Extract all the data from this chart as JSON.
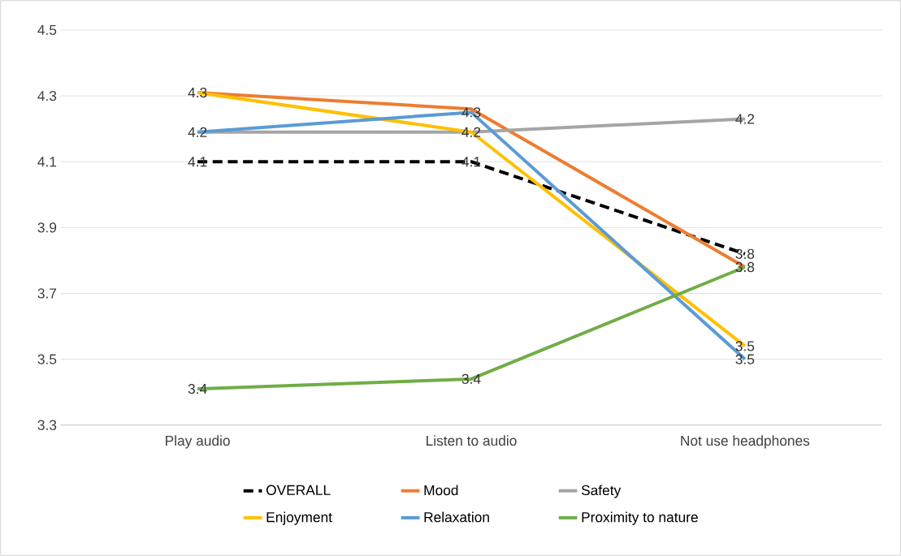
{
  "chart_data": {
    "type": "line",
    "categories": [
      "Play audio",
      "Listen to audio",
      "Not use headphones"
    ],
    "ylim": [
      3.3,
      4.5
    ],
    "yticks": [
      3.3,
      3.5,
      3.7,
      3.9,
      4.1,
      4.3,
      4.5
    ],
    "grid": "y",
    "legend": "bottom",
    "marker": "none",
    "series": [
      {
        "name": "OVERALL",
        "color": "#000000",
        "line_style": "dashed",
        "values": [
          4.1,
          4.1,
          3.82
        ],
        "value_labels": [
          "4.1",
          "4.1",
          "3.8"
        ]
      },
      {
        "name": "Mood",
        "color": "#ed7d31",
        "values": [
          4.31,
          4.26,
          3.78
        ],
        "value_labels": [
          null,
          null,
          null
        ]
      },
      {
        "name": "Safety",
        "color": "#a5a5a5",
        "values": [
          4.19,
          4.19,
          4.23
        ],
        "value_labels": [
          null,
          null,
          "4.2"
        ]
      },
      {
        "name": "Enjoyment",
        "color": "#ffc000",
        "values": [
          4.31,
          4.19,
          3.54
        ],
        "value_labels": [
          "4.3",
          "4.2",
          "3.5"
        ]
      },
      {
        "name": "Relaxation",
        "color": "#5b9bd5",
        "values": [
          4.19,
          4.25,
          3.5
        ],
        "value_labels": [
          "4.2",
          "4.3",
          "3.5"
        ]
      },
      {
        "name": "Proximity to nature",
        "color": "#70ad47",
        "values": [
          3.41,
          3.44,
          3.78
        ],
        "value_labels": [
          "3.4",
          "3.4",
          "3.8"
        ]
      }
    ]
  }
}
